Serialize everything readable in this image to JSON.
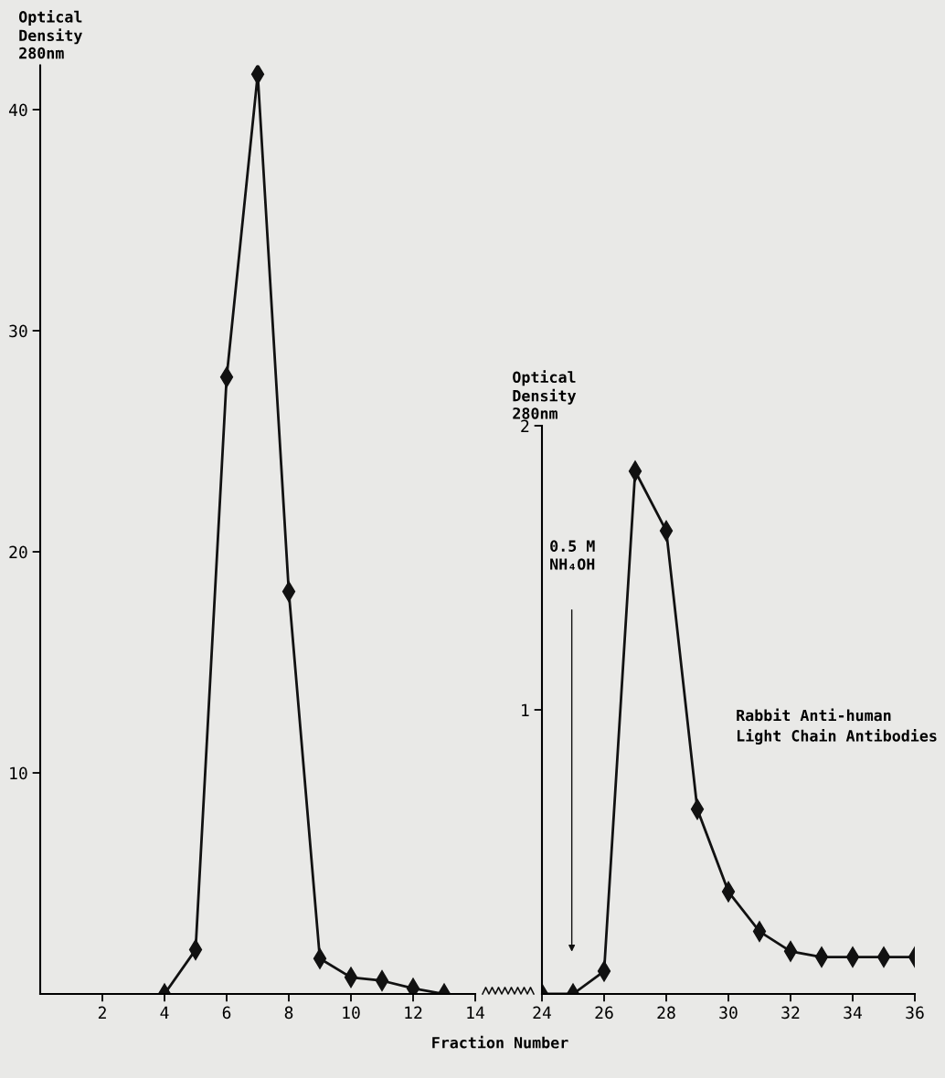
{
  "chart_data": [
    {
      "type": "line",
      "ylabel": "Optical\nDensity\n280nm",
      "x": [
        4,
        5,
        6,
        7,
        8,
        9,
        10,
        11,
        12,
        13
      ],
      "series": [
        {
          "color": "#111111",
          "values": [
            0,
            2.0,
            27.9,
            41.6,
            18.2,
            1.6,
            0.75,
            0.6,
            0.25,
            0
          ]
        }
      ],
      "xlim": [
        0,
        14
      ],
      "ylim": [
        0,
        42
      ],
      "xticks": [
        2,
        4,
        6,
        8,
        10,
        12,
        14
      ],
      "yticks": [
        10,
        20,
        30,
        40
      ],
      "marker": "diamond",
      "line_style": "solid",
      "grid": false,
      "legend": false
    },
    {
      "type": "line",
      "ylabel": "Optical\nDensity\n280nm",
      "xlabel": "Fraction Number",
      "x": [
        24,
        25,
        26,
        27,
        28,
        29,
        30,
        31,
        32,
        33,
        34,
        35,
        36
      ],
      "series": [
        {
          "color": "#111111",
          "values": [
            0,
            0,
            0.08,
            1.84,
            1.63,
            0.65,
            0.36,
            0.22,
            0.15,
            0.13,
            0.13,
            0.13,
            0.13
          ]
        }
      ],
      "xlim": [
        24,
        36
      ],
      "ylim": [
        0,
        2
      ],
      "xticks": [
        24,
        26,
        28,
        30,
        32,
        34,
        36
      ],
      "yticks": [
        1,
        2
      ],
      "marker": "diamond",
      "line_style": "solid",
      "grid": false,
      "legend": false,
      "annotations": [
        "0.5 M\nNH₄OH",
        "Rabbit Anti-human\nLight Chain Antibodies"
      ]
    }
  ]
}
